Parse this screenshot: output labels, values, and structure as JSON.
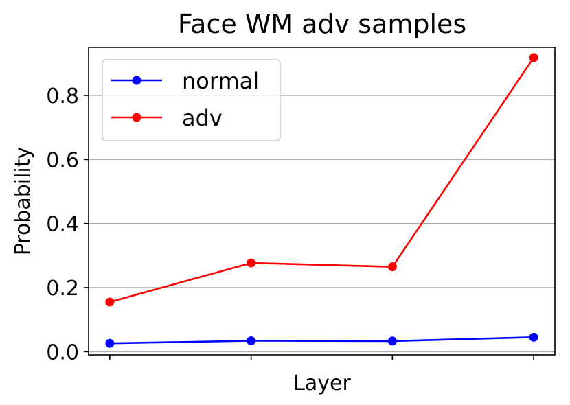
{
  "chart_data": {
    "type": "line",
    "title": "Face WM  adv samples",
    "xlabel": "Layer",
    "ylabel": "Probability",
    "x": [
      1,
      2,
      3,
      4
    ],
    "xtick_labels": [
      "",
      "",
      "",
      ""
    ],
    "ylim": [
      -0.01,
      0.95
    ],
    "yticks": [
      0.0,
      0.2,
      0.4,
      0.6,
      0.8
    ],
    "ytick_labels": [
      "0.0",
      "0.2",
      "0.4",
      "0.6",
      "0.8"
    ],
    "grid": "horizontal",
    "legend_position": "top-left",
    "series": [
      {
        "name": "normal",
        "color": "#0000ff",
        "marker": "circle",
        "values": [
          0.026,
          0.034,
          0.033,
          0.045
        ]
      },
      {
        "name": "adv",
        "color": "#ff0000",
        "marker": "circle",
        "values": [
          0.155,
          0.277,
          0.265,
          0.918
        ]
      }
    ]
  }
}
